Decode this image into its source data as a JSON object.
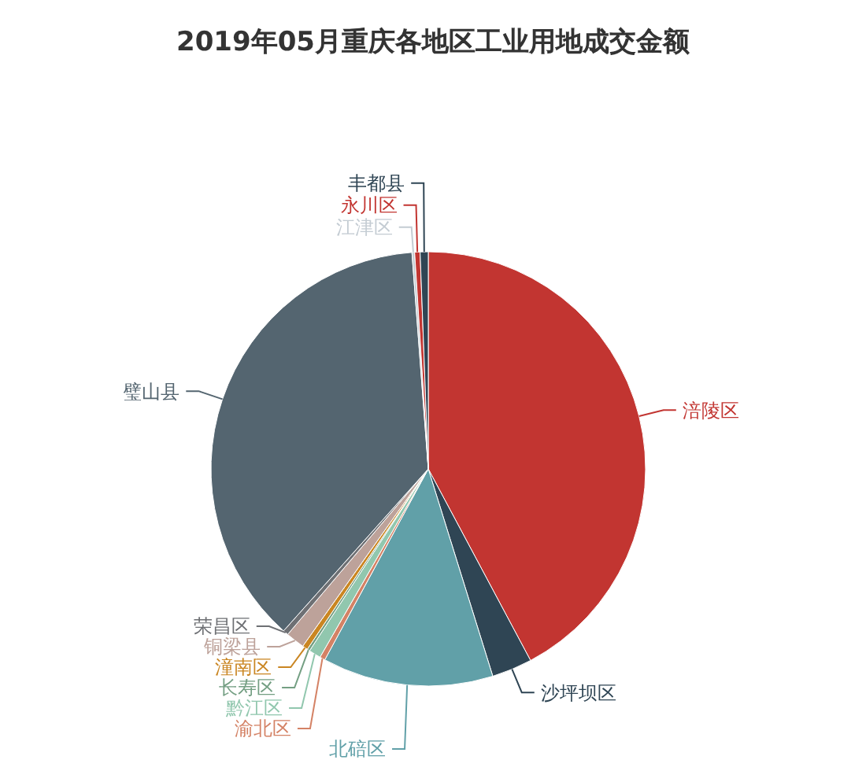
{
  "chart_data": {
    "type": "pie",
    "title": "2019年05月重庆各地区工业用地成交金额",
    "categories": [
      "涪陵区",
      "沙坪坝区",
      "北碚区",
      "渝北区",
      "黔江区",
      "长寿区",
      "潼南区",
      "铜梁县",
      "荣昌区",
      "璧山县",
      "江津区",
      "永川区",
      "丰都县"
    ],
    "values": [
      42.2,
      3,
      12.7,
      0.4,
      0.9,
      0.2,
      0.4,
      1.4,
      0.4,
      37.2,
      0.2,
      0.4,
      0.6
    ],
    "colors": [
      "#c23531",
      "#2f4554",
      "#61a0a8",
      "#d48265",
      "#91c7ae",
      "#749f83",
      "#ca8622",
      "#bda29a",
      "#6e7074",
      "#546570",
      "#c4ccd3",
      "#c23531",
      "#2f4554"
    ]
  }
}
